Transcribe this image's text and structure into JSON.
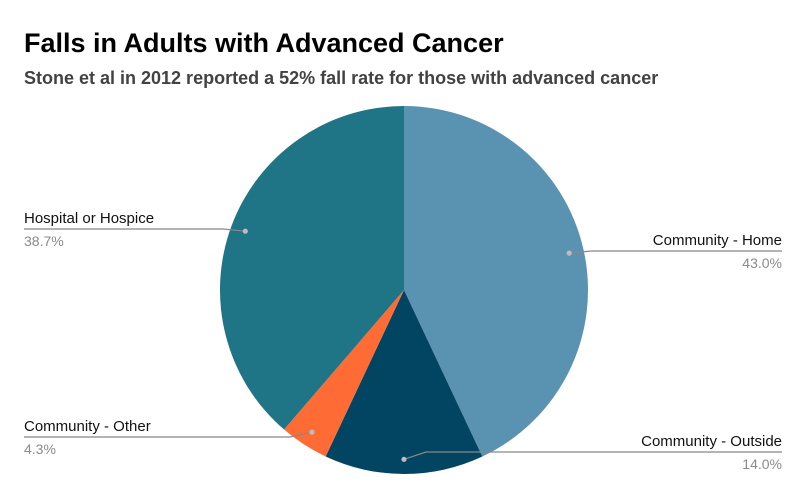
{
  "chart_data": {
    "type": "pie",
    "title": "Falls in Adults with Advanced Cancer",
    "subtitle": "Stone et al in 2012 reported a 52% fall rate for those with advanced cancer",
    "start": "12 o'clock",
    "direction": "clockwise",
    "slices": [
      {
        "label": "Community - Home",
        "value": 43.0,
        "pct_label": "43.0%",
        "color": "#5a93b1",
        "label_side": "right"
      },
      {
        "label": "Community - Outside",
        "value": 14.0,
        "pct_label": "14.0%",
        "color": "#014563",
        "label_side": "right"
      },
      {
        "label": "Community - Other",
        "value": 4.3,
        "pct_label": "4.3%",
        "color": "#ff6b34",
        "label_side": "left"
      },
      {
        "label": "Hospital or Hospice",
        "value": 38.7,
        "pct_label": "38.7%",
        "color": "#1f7585",
        "label_side": "left"
      }
    ]
  }
}
